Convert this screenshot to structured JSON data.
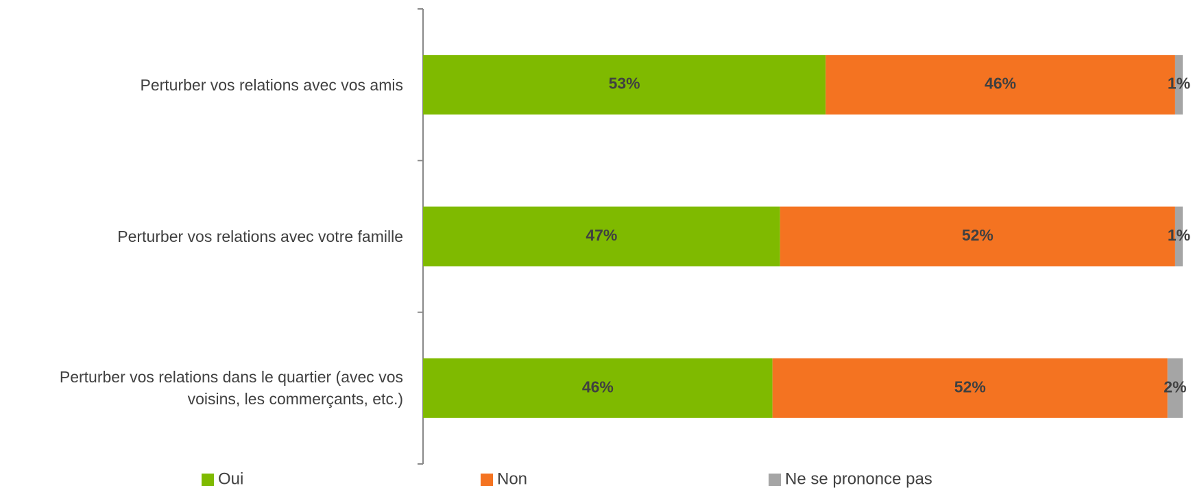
{
  "chart_data": {
    "type": "stacked_bar_horizontal",
    "categories": [
      "Perturber vos relations avec vos amis",
      "Perturber vos relations avec votre famille",
      "Perturber vos relations dans le quartier (avec vos voisins, les commerçants, etc.)"
    ],
    "series": [
      {
        "name": "Oui",
        "color": "#7fba00",
        "values": [
          53,
          47,
          46
        ],
        "value_labels": [
          "53%",
          "47%",
          "46%"
        ]
      },
      {
        "name": "Non",
        "color": "#f47321",
        "values": [
          46,
          52,
          52
        ],
        "value_labels": [
          "46%",
          "52%",
          "52%"
        ]
      },
      {
        "name": "Ne se prononce pas",
        "color": "#a5a5a5",
        "values": [
          1,
          1,
          2
        ],
        "value_labels": [
          "1%",
          "1%",
          "2%"
        ]
      }
    ],
    "legend": "bottom"
  }
}
